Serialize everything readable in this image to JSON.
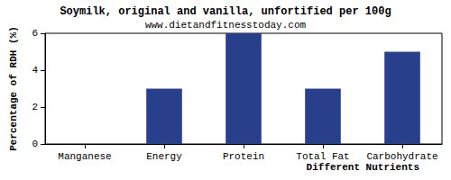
{
  "chart_data": {
    "type": "bar",
    "title": "Soymilk, original and vanilla, unfortified per 100g",
    "subtitle": "www.dietandfitnesstoday.com",
    "x_label": "Different Nutrients",
    "y_label": "Percentage of RDH (%)",
    "categories": [
      "Manganese",
      "Energy",
      "Protein",
      "Total Fat",
      "Carbohydrate"
    ],
    "values": [
      0,
      3,
      6,
      3,
      5
    ],
    "color": "#283f8c",
    "ylim": [
      0,
      6
    ],
    "yticks": [
      0,
      2,
      4,
      6
    ],
    "grid": false
  }
}
